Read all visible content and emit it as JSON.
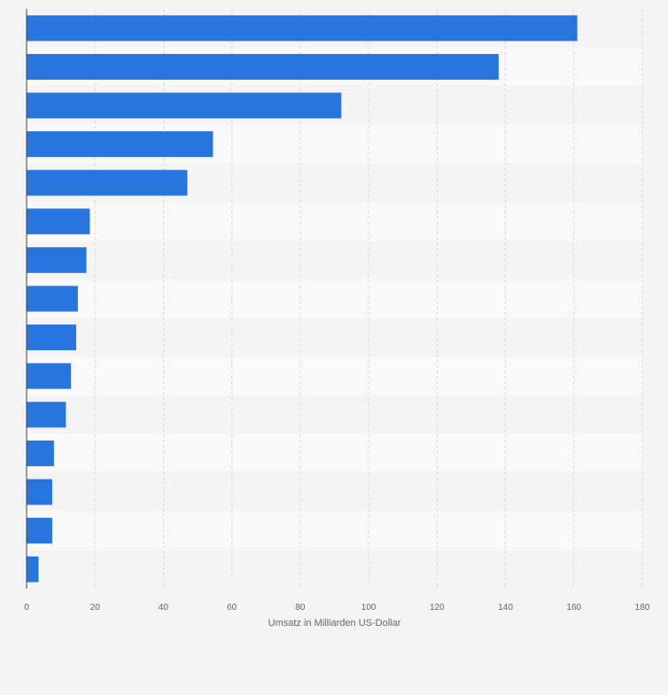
{
  "chart_data": {
    "type": "bar",
    "orientation": "horizontal",
    "categories": [
      "",
      "",
      "",
      "",
      "",
      "",
      "",
      "",
      "",
      "",
      "",
      "",
      "",
      "",
      ""
    ],
    "values": [
      161,
      138,
      92,
      54.5,
      47,
      18.5,
      17.5,
      15,
      14.5,
      13,
      11.5,
      8,
      7.5,
      7.5,
      3.5
    ],
    "title": "",
    "xlabel": "Umsatz in Milliarden US-Dollar",
    "ylabel": "",
    "xlim": [
      0,
      180
    ],
    "xticks": [
      0,
      20,
      40,
      60,
      80,
      100,
      120,
      140,
      160,
      180
    ],
    "grid": "vertical dashed",
    "bar_color": "#2876dd",
    "band_colors": [
      "#f4f4f4",
      "#f9f9f9"
    ]
  }
}
